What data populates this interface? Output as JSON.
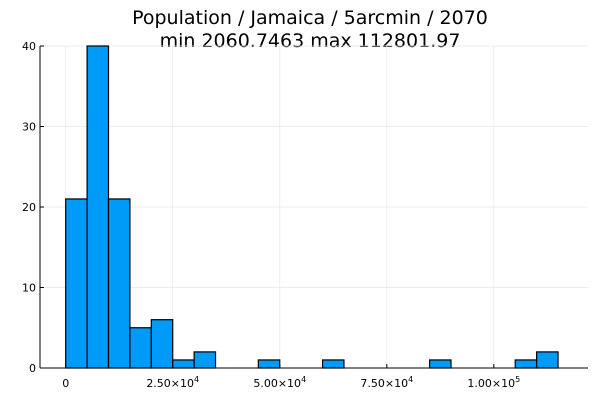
{
  "chart_data": {
    "type": "bar",
    "title": "Population / Jamaica / 5arcmin / 2070",
    "subtitle": "min 2060.7463  max 112801.97",
    "xlabel": "",
    "ylabel": "",
    "bin_width": 5000,
    "bins": [
      {
        "start": 0,
        "end": 5000,
        "count": 21
      },
      {
        "start": 5000,
        "end": 10000,
        "count": 40
      },
      {
        "start": 10000,
        "end": 15000,
        "count": 21
      },
      {
        "start": 15000,
        "end": 20000,
        "count": 5
      },
      {
        "start": 20000,
        "end": 25000,
        "count": 6
      },
      {
        "start": 25000,
        "end": 30000,
        "count": 1
      },
      {
        "start": 30000,
        "end": 35000,
        "count": 2
      },
      {
        "start": 45000,
        "end": 50000,
        "count": 1
      },
      {
        "start": 60000,
        "end": 65000,
        "count": 1
      },
      {
        "start": 85000,
        "end": 90000,
        "count": 1
      },
      {
        "start": 105000,
        "end": 110000,
        "count": 1
      },
      {
        "start": 110000,
        "end": 115000,
        "count": 2
      }
    ],
    "xlim": [
      -6000,
      122000
    ],
    "ylim": [
      0,
      40
    ],
    "x_ticks": [
      {
        "value": 0,
        "mantissa": "0",
        "exponent": ""
      },
      {
        "value": 25000,
        "mantissa": "2.50×10",
        "exponent": "4"
      },
      {
        "value": 50000,
        "mantissa": "5.00×10",
        "exponent": "4"
      },
      {
        "value": 75000,
        "mantissa": "7.50×10",
        "exponent": "4"
      },
      {
        "value": 100000,
        "mantissa": "1.00×10",
        "exponent": "5"
      }
    ],
    "y_ticks": [
      {
        "value": 0,
        "label": "0"
      },
      {
        "value": 10,
        "label": "10"
      },
      {
        "value": 20,
        "label": "20"
      },
      {
        "value": 30,
        "label": "30"
      },
      {
        "value": 40,
        "label": "40"
      }
    ],
    "grid": true,
    "legend": "none",
    "bar_color": "#009af9",
    "bar_edge_color": "#000000"
  }
}
